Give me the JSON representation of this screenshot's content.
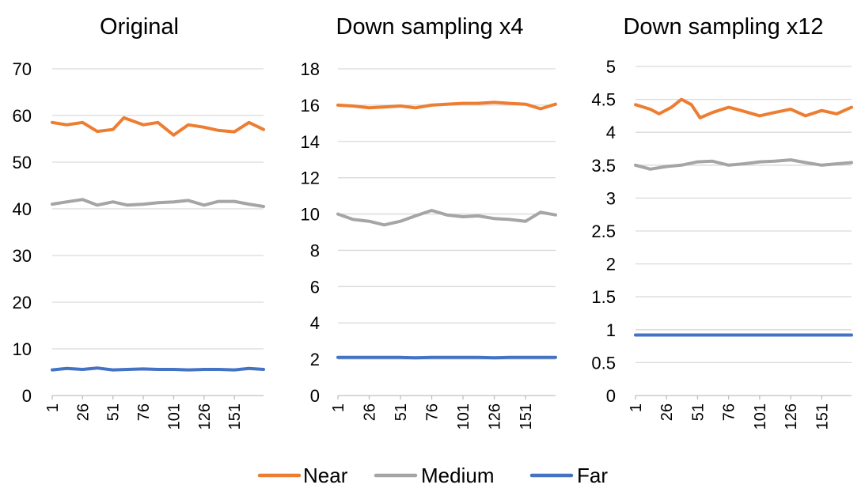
{
  "series_styles": [
    {
      "name": "Near",
      "color": "#ED7D31"
    },
    {
      "name": "Medium",
      "color": "#A5A5A5"
    },
    {
      "name": "Far",
      "color": "#4472C4"
    }
  ],
  "legend": {
    "position": "bottom",
    "items": [
      "Near",
      "Medium",
      "Far"
    ]
  },
  "chart_data": [
    {
      "type": "line",
      "title": "Original",
      "ylim": [
        0,
        70
      ],
      "yticks": [
        "0",
        "10",
        "20",
        "30",
        "40",
        "50",
        "60",
        "70"
      ],
      "xticks": [
        "1",
        "26",
        "51",
        "76",
        "101",
        "126",
        "151"
      ],
      "x_range": [
        1,
        175
      ],
      "grid": true,
      "series": [
        {
          "name": "Near",
          "x": [
            1,
            13,
            26,
            38,
            51,
            60,
            76,
            88,
            101,
            113,
            126,
            138,
            151,
            163,
            175
          ],
          "values": [
            58.5,
            58.0,
            58.5,
            56.6,
            57.0,
            59.5,
            58.0,
            58.5,
            55.8,
            58.0,
            57.5,
            56.8,
            56.5,
            58.5,
            57.0
          ]
        },
        {
          "name": "Medium",
          "x": [
            1,
            13,
            26,
            38,
            51,
            63,
            76,
            88,
            101,
            113,
            126,
            138,
            151,
            163,
            175
          ],
          "values": [
            41.0,
            41.5,
            42.0,
            40.8,
            41.5,
            40.8,
            41.0,
            41.3,
            41.5,
            41.8,
            40.8,
            41.6,
            41.6,
            41.0,
            40.5
          ]
        },
        {
          "name": "Far",
          "x": [
            1,
            13,
            26,
            38,
            51,
            63,
            76,
            88,
            101,
            113,
            126,
            138,
            151,
            163,
            175
          ],
          "values": [
            5.5,
            5.8,
            5.6,
            5.9,
            5.5,
            5.6,
            5.7,
            5.6,
            5.6,
            5.5,
            5.6,
            5.6,
            5.5,
            5.8,
            5.6
          ]
        }
      ]
    },
    {
      "type": "line",
      "title": "Down sampling x4",
      "ylim": [
        0,
        18
      ],
      "yticks": [
        "0",
        "2",
        "4",
        "6",
        "8",
        "10",
        "12",
        "14",
        "16",
        "18"
      ],
      "xticks": [
        "1",
        "26",
        "51",
        "76",
        "101",
        "126",
        "151"
      ],
      "x_range": [
        1,
        175
      ],
      "grid": true,
      "series": [
        {
          "name": "Near",
          "x": [
            1,
            13,
            26,
            38,
            51,
            63,
            76,
            88,
            101,
            113,
            126,
            138,
            151,
            163,
            175
          ],
          "values": [
            16.0,
            15.95,
            15.85,
            15.9,
            15.95,
            15.85,
            16.0,
            16.05,
            16.1,
            16.1,
            16.15,
            16.1,
            16.05,
            15.8,
            16.05
          ]
        },
        {
          "name": "Medium",
          "x": [
            1,
            13,
            26,
            38,
            51,
            63,
            76,
            88,
            101,
            113,
            126,
            138,
            151,
            163,
            175
          ],
          "values": [
            10.0,
            9.7,
            9.6,
            9.4,
            9.6,
            9.9,
            10.2,
            9.95,
            9.85,
            9.9,
            9.75,
            9.7,
            9.6,
            10.1,
            9.95
          ]
        },
        {
          "name": "Far",
          "x": [
            1,
            13,
            26,
            38,
            51,
            63,
            76,
            88,
            101,
            113,
            126,
            138,
            151,
            163,
            175
          ],
          "values": [
            2.1,
            2.1,
            2.1,
            2.1,
            2.1,
            2.08,
            2.1,
            2.1,
            2.1,
            2.1,
            2.08,
            2.1,
            2.1,
            2.1,
            2.1
          ]
        }
      ]
    },
    {
      "type": "line",
      "title": "Down sampling x12",
      "ylim": [
        0,
        5
      ],
      "yticks": [
        "0",
        "0.5",
        "1",
        "1.5",
        "2",
        "2.5",
        "3",
        "3.5",
        "4",
        "4.5",
        "5"
      ],
      "xticks": [
        "1",
        "26",
        "51",
        "76",
        "101",
        "126",
        "151"
      ],
      "x_range": [
        1,
        175
      ],
      "grid": true,
      "series": [
        {
          "name": "Near",
          "x": [
            1,
            13,
            20,
            30,
            38,
            46,
            53,
            63,
            76,
            88,
            101,
            113,
            126,
            138,
            151,
            163,
            175
          ],
          "values": [
            4.42,
            4.35,
            4.28,
            4.38,
            4.5,
            4.42,
            4.22,
            4.3,
            4.38,
            4.32,
            4.25,
            4.3,
            4.35,
            4.25,
            4.33,
            4.28,
            4.38
          ]
        },
        {
          "name": "Medium",
          "x": [
            1,
            13,
            26,
            38,
            51,
            63,
            76,
            88,
            101,
            113,
            126,
            138,
            151,
            163,
            175
          ],
          "values": [
            3.5,
            3.44,
            3.48,
            3.5,
            3.55,
            3.56,
            3.5,
            3.52,
            3.55,
            3.56,
            3.58,
            3.54,
            3.5,
            3.52,
            3.54
          ]
        },
        {
          "name": "Far",
          "x": [
            1,
            26,
            51,
            76,
            101,
            126,
            151,
            175
          ],
          "values": [
            0.92,
            0.92,
            0.92,
            0.92,
            0.92,
            0.92,
            0.92,
            0.92
          ]
        }
      ]
    }
  ]
}
